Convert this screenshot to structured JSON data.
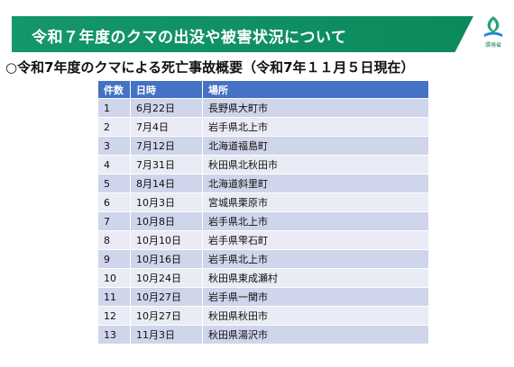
{
  "header": {
    "title": "令和７年度のクマの出没や被害状況について",
    "logo_icon": "ministry-of-environment-logo",
    "logo_text": "環境省",
    "brand_color": "#14976a"
  },
  "section": {
    "subtitle": "○令和7年度のクマによる死亡事故概要（令和7年１１月５日現在）"
  },
  "table": {
    "columns": [
      "件数",
      "日時",
      "場所"
    ],
    "rows": [
      {
        "no": "1",
        "date": "6月22日",
        "place": "長野県大町市"
      },
      {
        "no": "2",
        "date": "7月4日",
        "place": "岩手県北上市"
      },
      {
        "no": "3",
        "date": "7月12日",
        "place": "北海道福島町"
      },
      {
        "no": "4",
        "date": "7月31日",
        "place": "秋田県北秋田市"
      },
      {
        "no": "5",
        "date": "8月14日",
        "place": "北海道斜里町"
      },
      {
        "no": "6",
        "date": "10月3日",
        "place": "宮城県栗原市"
      },
      {
        "no": "7",
        "date": "10月8日",
        "place": "岩手県北上市"
      },
      {
        "no": "8",
        "date": "10月10日",
        "place": "岩手県雫石町"
      },
      {
        "no": "9",
        "date": "10月16日",
        "place": "岩手県北上市"
      },
      {
        "no": "10",
        "date": "10月24日",
        "place": "秋田県東成瀬村"
      },
      {
        "no": "11",
        "date": "10月27日",
        "place": "岩手県一関市"
      },
      {
        "no": "12",
        "date": "10月27日",
        "place": "秋田県秋田市"
      },
      {
        "no": "13",
        "date": "11月3日",
        "place": "秋田県湯沢市"
      }
    ],
    "header_color": "#4472c4",
    "row_color_odd": "#cfd5ea",
    "row_color_even": "#e9ebf5"
  }
}
